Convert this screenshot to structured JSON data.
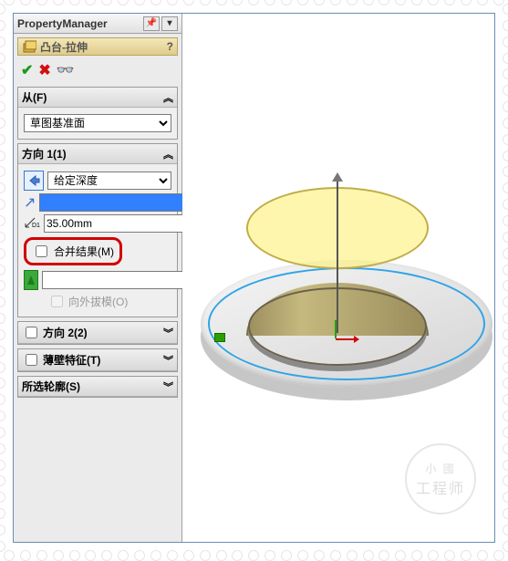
{
  "pm_title": "PropertyManager",
  "feature_title": "凸台-拉伸",
  "groups": {
    "from": {
      "label": "从(F)",
      "value": "草图基准面"
    },
    "dir1": {
      "label": "方向 1(1)",
      "end_condition": "给定深度",
      "distance": "35.00mm",
      "color_value": "",
      "merge_label": "合并结果(M)",
      "merge_checked": false,
      "draft_label": "向外拔模(O)",
      "draft_color": "#3aaa3a"
    },
    "dir2": {
      "label": "方向 2(2)"
    },
    "thin": {
      "label": "薄壁特征(T)"
    },
    "contour": {
      "label": "所选轮廓(S)"
    }
  },
  "watermark": {
    "line1": "小 國",
    "line2": "工程师"
  },
  "colors": {
    "highlight_red": "#d20000",
    "preview_yellow": "rgba(255,240,120,.6)",
    "sketch_blue": "#2fa4e7"
  }
}
